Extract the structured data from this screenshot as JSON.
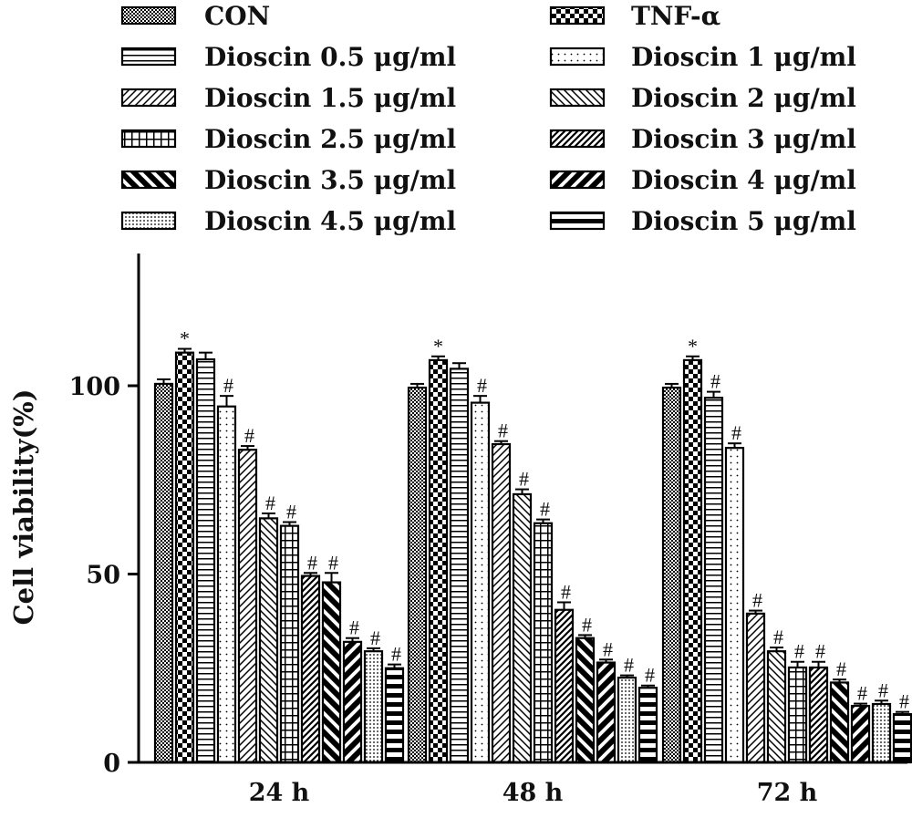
{
  "chart_data": {
    "type": "bar",
    "ylabel": "Cell viability(%)",
    "xlabel": "",
    "ylim": [
      0,
      130
    ],
    "yticks": [
      0,
      50,
      100
    ],
    "grid": false,
    "legend_position": "top",
    "categories": [
      "24 h",
      "48 h",
      "72 h"
    ],
    "series": [
      {
        "name": "CON",
        "pattern": "checker-fine",
        "values": [
          100.5,
          99.5,
          99.5
        ],
        "errors": [
          1.2,
          1.0,
          1.0
        ],
        "marks": [
          "",
          "",
          ""
        ]
      },
      {
        "name": "TNF-α",
        "pattern": "checker-bold",
        "values": [
          108.8,
          106.8,
          106.8
        ],
        "errors": [
          1.0,
          1.0,
          1.0
        ],
        "marks": [
          "*",
          "*",
          "*"
        ]
      },
      {
        "name": "Dioscin 0.5 μg/ml",
        "pattern": "hlines",
        "values": [
          107,
          104.5,
          96.8
        ],
        "errors": [
          1.8,
          1.5,
          1.6
        ],
        "marks": [
          "",
          "",
          "#"
        ]
      },
      {
        "name": "Dioscin 1 μg/ml",
        "pattern": "dots",
        "values": [
          94.5,
          95.5,
          83.5
        ],
        "errors": [
          2.8,
          1.8,
          1.2
        ],
        "marks": [
          "#",
          "#",
          "#"
        ]
      },
      {
        "name": "Dioscin 1.5 μg/ml",
        "pattern": "diag-up",
        "values": [
          83,
          84.5,
          39.5
        ],
        "errors": [
          1.0,
          0.8,
          0.8
        ],
        "marks": [
          "#",
          "#",
          "#"
        ]
      },
      {
        "name": "Dioscin 2 μg/ml",
        "pattern": "diag-down",
        "values": [
          64.8,
          71.2,
          29.5
        ],
        "errors": [
          1.3,
          1.3,
          1.0
        ],
        "marks": [
          "#",
          "#",
          "#"
        ]
      },
      {
        "name": "Dioscin 2.5 μg/ml",
        "pattern": "grid",
        "values": [
          62.8,
          63.5,
          25.2
        ],
        "errors": [
          1.0,
          1.0,
          1.5
        ],
        "marks": [
          "#",
          "#",
          "#"
        ]
      },
      {
        "name": "Dioscin 3 μg/ml",
        "pattern": "diag-up-thick",
        "values": [
          49.5,
          40.5,
          25.2
        ],
        "errors": [
          0.8,
          2.0,
          1.5
        ],
        "marks": [
          "#",
          "#",
          "#"
        ]
      },
      {
        "name": "Dioscin 3.5 μg/ml",
        "pattern": "diag-down-bold",
        "values": [
          47.8,
          33.0,
          21.2
        ],
        "errors": [
          2.5,
          0.8,
          0.8
        ],
        "marks": [
          "#",
          "#",
          "#"
        ]
      },
      {
        "name": "Dioscin 4 μg/ml",
        "pattern": "diag-up-bold",
        "values": [
          32.0,
          26.5,
          15.0
        ],
        "errors": [
          1.0,
          0.8,
          0.6
        ],
        "marks": [
          "#",
          "#",
          "#"
        ]
      },
      {
        "name": "Dioscin 4.5 μg/ml",
        "pattern": "dots-dense",
        "values": [
          29.5,
          22.5,
          15.5
        ],
        "errors": [
          0.8,
          0.6,
          0.9
        ],
        "marks": [
          "#",
          "#",
          "#"
        ]
      },
      {
        "name": "Dioscin 5 μg/ml",
        "pattern": "hlines-bold",
        "values": [
          25.0,
          19.8,
          12.8
        ],
        "errors": [
          1.0,
          0.6,
          0.6
        ],
        "marks": [
          "#",
          "#",
          "#"
        ]
      }
    ]
  }
}
